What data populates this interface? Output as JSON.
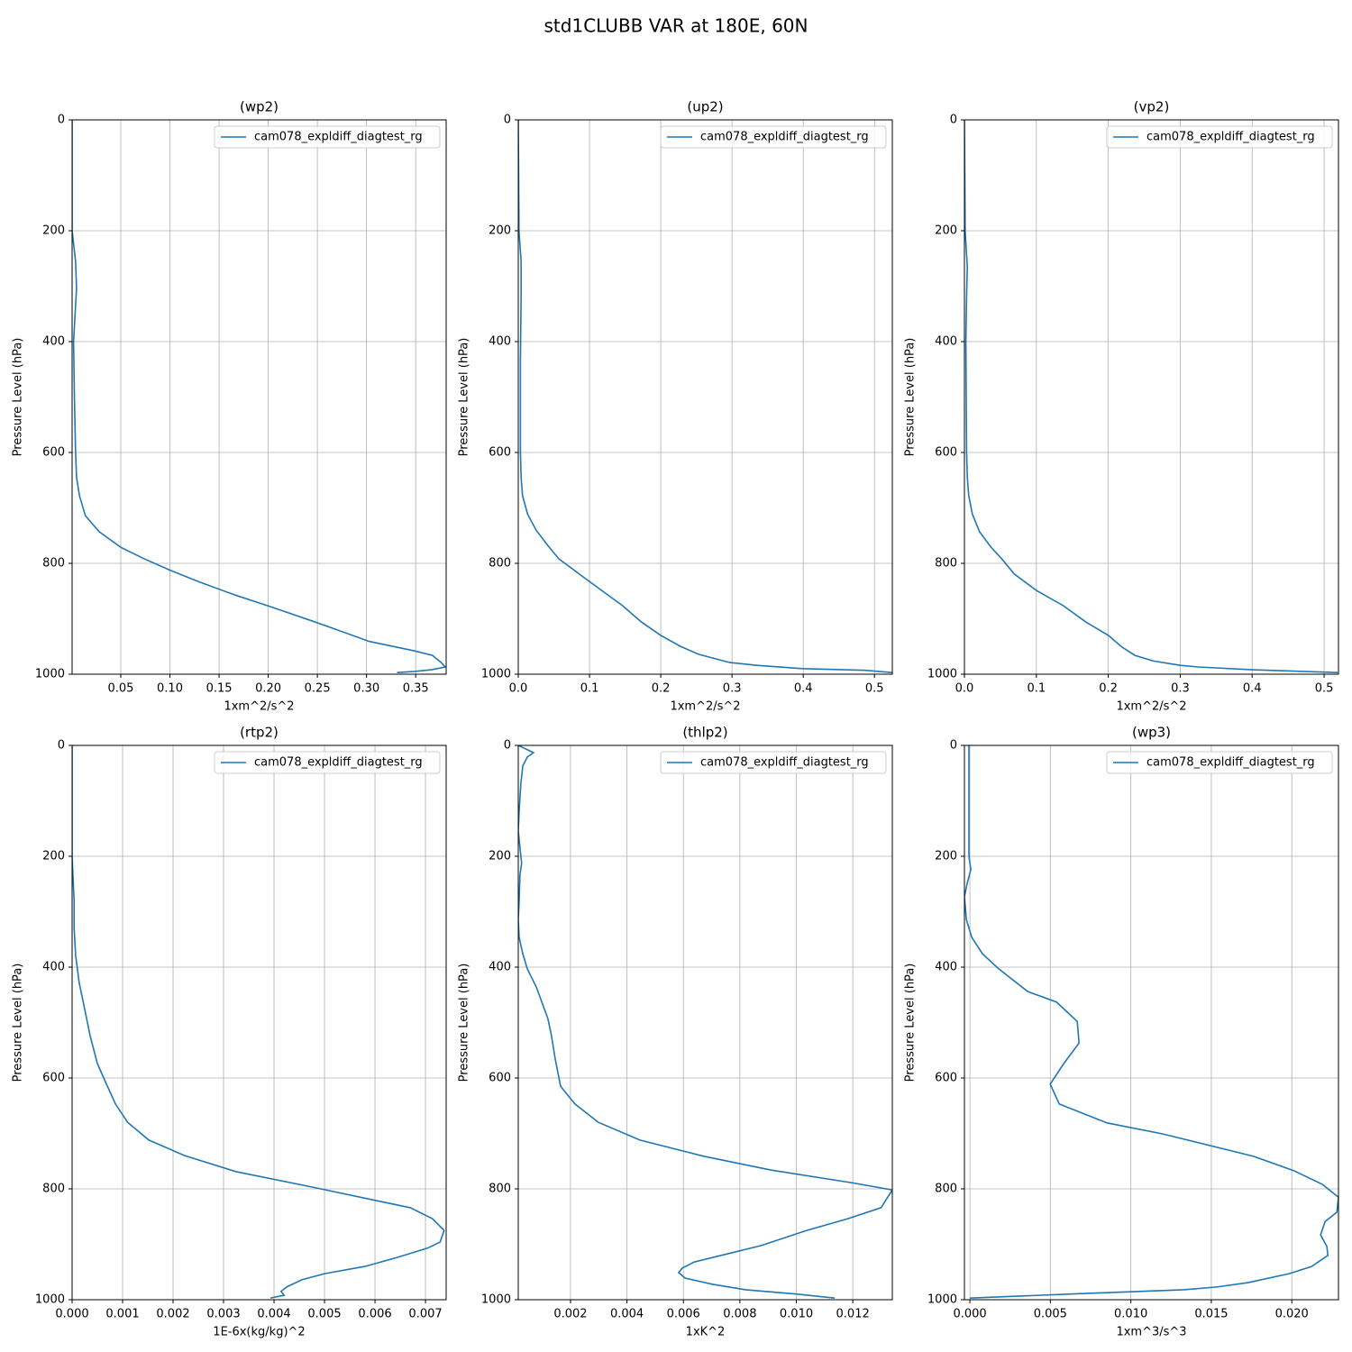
{
  "title": "std1CLUBB VAR at 180E, 60N",
  "chart_data": [
    {
      "type": "line",
      "title": "(wp2)",
      "xlabel": "1xm^2/s^2",
      "ylabel": "Pressure Level (hPa)",
      "xlim": [
        0.0005,
        0.381
      ],
      "ylim": [
        1000,
        0
      ],
      "xticks": [
        0.05,
        {
          "value": 0.1,
          "label": "0.10"
        },
        0.15,
        {
          "value": 0.2,
          "label": "0.20"
        },
        0.25,
        {
          "value": 0.3,
          "label": "0.30"
        },
        0.35
      ],
      "yticks": [
        0,
        200,
        400,
        600,
        800,
        1000
      ],
      "grid": true,
      "legend": "upper right",
      "series": [
        {
          "name": "cam078_expldiff_diagtest_rg",
          "color": "#1f77b4",
          "x": [
            0.0005,
            0.0005,
            0.004,
            0.005,
            0.002,
            0.003,
            0.004,
            0.005,
            0.008,
            0.014,
            0.028,
            0.05,
            0.074,
            0.101,
            0.129,
            0.166,
            0.202,
            0.248,
            0.303,
            0.349,
            0.367,
            0.376,
            0.38,
            0.366,
            0.349,
            0.331
          ],
          "y": [
            0,
            200,
            255,
            304,
            400,
            515,
            597,
            645,
            678,
            714,
            743,
            771,
            792,
            813,
            833,
            857,
            878,
            906,
            941,
            958,
            966,
            979,
            987,
            992,
            995,
            997
          ]
        }
      ]
    },
    {
      "type": "line",
      "title": "(up2)",
      "xlabel": "1xm^2/s^2",
      "ylabel": "Pressure Level (hPa)",
      "xlim": [
        0,
        0.525
      ],
      "ylim": [
        1000,
        0
      ],
      "xticks": [
        {
          "value": 0,
          "label": "0.0"
        },
        0.1,
        0.2,
        0.3,
        0.4,
        0.5
      ],
      "yticks": [
        0,
        200,
        400,
        600,
        800,
        1000
      ],
      "grid": true,
      "legend": "upper right",
      "series": [
        {
          "name": "cam078_expldiff_diagtest_rg",
          "color": "#1f77b4",
          "x": [
            0,
            0.001,
            0.004,
            0.004,
            0.003,
            0.003,
            0.004,
            0.006,
            0.013,
            0.025,
            0.041,
            0.057,
            0.1,
            0.146,
            0.173,
            0.2,
            0.228,
            0.253,
            0.297,
            0.335,
            0.399,
            0.487,
            0.525
          ],
          "y": [
            0,
            200,
            255,
            320,
            434,
            597,
            645,
            678,
            711,
            740,
            767,
            792,
            833,
            876,
            906,
            930,
            950,
            964,
            979,
            984,
            990,
            993,
            997
          ]
        }
      ]
    },
    {
      "type": "line",
      "title": "(vp2)",
      "xlabel": "1xm^2/s^2",
      "ylabel": "Pressure Level (hPa)",
      "xlim": [
        0,
        0.52
      ],
      "ylim": [
        1000,
        0
      ],
      "xticks": [
        {
          "value": 0,
          "label": "0.0"
        },
        0.1,
        0.2,
        0.3,
        0.4,
        0.5
      ],
      "yticks": [
        0,
        200,
        400,
        600,
        800,
        1000
      ],
      "grid": true,
      "legend": "upper right",
      "series": [
        {
          "name": "cam078_expldiff_diagtest_rg",
          "color": "#1f77b4",
          "x": [
            0,
            0.001,
            0.004,
            0.003,
            0.002,
            0.003,
            0.004,
            0.006,
            0.011,
            0.021,
            0.037,
            0.052,
            0.069,
            0.1,
            0.137,
            0.169,
            0.2,
            0.219,
            0.237,
            0.262,
            0.3,
            0.325,
            0.4,
            0.519
          ],
          "y": [
            0,
            200,
            265,
            320,
            400,
            597,
            645,
            678,
            711,
            743,
            771,
            792,
            819,
            849,
            876,
            906,
            930,
            951,
            966,
            976,
            984,
            987,
            992,
            997
          ]
        }
      ]
    },
    {
      "type": "line",
      "title": "(rtp2)",
      "xlabel": "1E-6x(kg/kg)^2",
      "ylabel": "Pressure Level (hPa)",
      "xlim": [
        0,
        0.00741
      ],
      "ylim": [
        1000,
        0
      ],
      "xticks": [
        {
          "value": 0,
          "label": "0.000"
        },
        0.001,
        0.002,
        0.003,
        0.004,
        0.005,
        0.006,
        0.007
      ],
      "yticks": [
        0,
        200,
        400,
        600,
        800,
        1000
      ],
      "grid": true,
      "legend": "upper right",
      "series": [
        {
          "name": "cam078_expldiff_diagtest_rg",
          "color": "#1f77b4",
          "x": [
            0,
            0,
            4e-05,
            4e-05,
            7e-05,
            0.00014,
            0.00025,
            0.00036,
            0.0005,
            0.00068,
            0.00086,
            0.0011,
            0.00152,
            0.00223,
            0.00325,
            0.00482,
            0.00586,
            0.0067,
            0.00714,
            0.00737,
            0.00729,
            0.00704,
            0.00643,
            0.0058,
            0.005,
            0.00455,
            0.00425,
            0.00414,
            0.0042,
            0.00393
          ],
          "y": [
            0,
            200,
            281,
            330,
            379,
            428,
            476,
            525,
            574,
            611,
            647,
            680,
            712,
            740,
            769,
            798,
            818,
            834,
            854,
            875,
            896,
            907,
            924,
            940,
            953,
            964,
            977,
            985,
            992,
            997
          ]
        }
      ]
    },
    {
      "type": "line",
      "title": "(thlp2)",
      "xlabel": "1xK^2",
      "ylabel": "Pressure Level (hPa)",
      "xlim": [
        0.00015,
        0.0134
      ],
      "ylim": [
        1000,
        0
      ],
      "xticks": [
        0.002,
        0.004,
        0.006,
        0.008,
        {
          "value": 0.01,
          "label": "0.010"
        },
        0.012
      ],
      "yticks": [
        0,
        200,
        400,
        600,
        800,
        1000
      ],
      "grid": true,
      "legend": "upper right",
      "series": [
        {
          "name": "cam078_expldiff_diagtest_rg",
          "color": "#1f77b4",
          "x": [
            0.00015,
            0.00069,
            0.00047,
            0.00031,
            0.00024,
            0.00018,
            0.00015,
            0.00021,
            0.00027,
            0.00021,
            0.00018,
            0.00015,
            0.00018,
            0.00031,
            0.00047,
            0.00079,
            0.0012,
            0.00133,
            0.00146,
            0.00165,
            0.00216,
            0.00299,
            0.00446,
            0.0067,
            0.00909,
            0.01197,
            0.0134,
            0.013,
            0.01181,
            0.01037,
            0.00877,
            0.00734,
            0.00638,
            0.00596,
            0.00583,
            0.00606,
            0.00702,
            0.0082,
            0.01005,
            0.01136
          ],
          "y": [
            0,
            13,
            21,
            37,
            70,
            119,
            154,
            184,
            213,
            233,
            281,
            314,
            346,
            376,
            403,
            436,
            493,
            525,
            566,
            615,
            647,
            680,
            712,
            741,
            766,
            789,
            802,
            834,
            854,
            875,
            902,
            920,
            932,
            943,
            951,
            961,
            972,
            982,
            990,
            997
          ]
        }
      ]
    },
    {
      "type": "line",
      "title": "(wp3)",
      "xlabel": "1xm^3/s^3",
      "ylabel": "Pressure Level (hPa)",
      "xlim": [
        -0.00034,
        0.0229
      ],
      "ylim": [
        1000,
        0
      ],
      "xticks": [
        {
          "value": 0,
          "label": "0.000"
        },
        0.005,
        {
          "value": 0.01,
          "label": "0.010"
        },
        0.015,
        {
          "value": 0.02,
          "label": "0.020"
        }
      ],
      "yticks": [
        0,
        200,
        400,
        600,
        800,
        1000
      ],
      "grid": true,
      "legend": "upper right",
      "series": [
        {
          "name": "cam078_expldiff_diagtest_rg",
          "color": "#1f77b4",
          "x": [
            -6e-05,
            -6e-05,
            6e-05,
            -0.00017,
            -0.00034,
            -0.00022,
            0.00011,
            0.00078,
            0.00179,
            0.00359,
            0.00538,
            0.00667,
            0.00678,
            0.00583,
            0.00499,
            0.00555,
            0.00852,
            0.01199,
            0.01759,
            0.02011,
            0.0219,
            0.0229,
            0.0228,
            0.02207,
            0.02179,
            0.02218,
            0.02224,
            0.02123,
            0.01983,
            0.01731,
            0.01535,
            0.01328,
            0.00695,
            0
          ],
          "y": [
            0,
            200,
            224,
            249,
            273,
            314,
            346,
            376,
            403,
            444,
            463,
            498,
            537,
            574,
            611,
            647,
            681,
            701,
            741,
            767,
            792,
            815,
            842,
            859,
            883,
            904,
            920,
            940,
            953,
            969,
            977,
            982,
            989,
            997
          ]
        }
      ]
    }
  ]
}
